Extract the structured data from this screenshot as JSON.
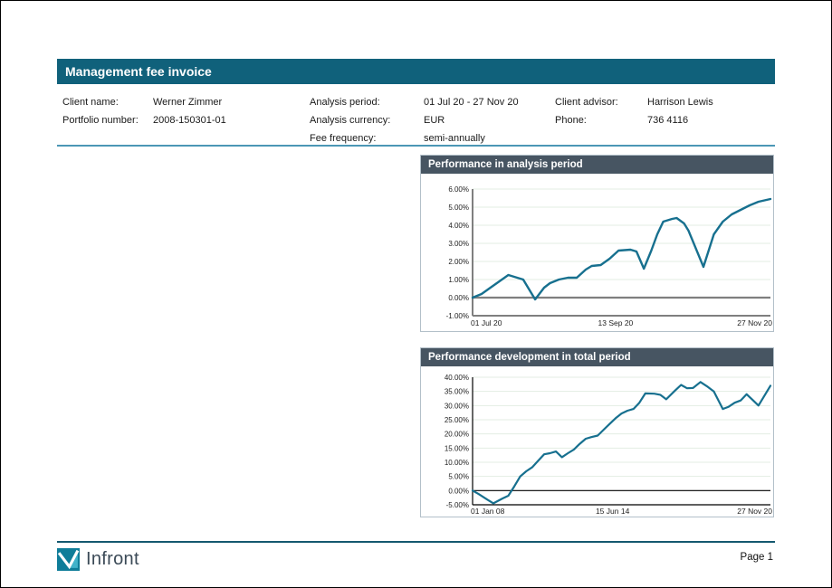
{
  "header": {
    "title": "Management fee invoice"
  },
  "client_info": {
    "col1": [
      {
        "label": "Client name:",
        "value": "Werner Zimmer"
      },
      {
        "label": "Portfolio number:",
        "value": "2008-150301-01"
      }
    ],
    "col2": [
      {
        "label": "Analysis period:",
        "value": "01 Jul 20 - 27 Nov 20"
      },
      {
        "label": "Analysis currency:",
        "value": "EUR"
      },
      {
        "label": "Fee frequency:",
        "value": "semi-annually"
      }
    ],
    "col3": [
      {
        "label": "Client advisor:",
        "value": "Harrison Lewis"
      },
      {
        "label": "Phone:",
        "value": "736 4116"
      }
    ]
  },
  "footer": {
    "brand": "Infront",
    "logo_icon": "infront-chart-logo",
    "page_label": "Page 1"
  },
  "colors": {
    "header_bar": "#10617b",
    "chart_title_bar": "#475562",
    "separator": "#4b97b5",
    "footer_line": "#14586f",
    "line": "#17708f",
    "gridline": "#e3ede3",
    "axis_gray": "#7f7f7f",
    "axis_black": "#000000",
    "logo_teal": "#0f7d99",
    "logo_teal_light": "#41b2ca"
  },
  "chart_data": [
    {
      "type": "line",
      "title": "Performance in analysis period",
      "ylabel_format": "percent",
      "ylim": [
        -1,
        6
      ],
      "ystep": 1,
      "grid": true,
      "legend": "none",
      "x_ticks": [
        {
          "label": "01 Jul 20",
          "pos": 0,
          "anchor": "start"
        },
        {
          "label": "13 Sep 20",
          "pos": 0.48,
          "anchor": "middle"
        },
        {
          "label": "27 Nov 20",
          "pos": 1,
          "anchor": "end"
        }
      ],
      "series": [
        {
          "name": "Performance in analysis period",
          "points": [
            [
              0,
              0
            ],
            [
              0.03,
              0.2
            ],
            [
              0.06,
              0.55
            ],
            [
              0.09,
              0.9
            ],
            [
              0.12,
              1.25
            ],
            [
              0.15,
              1.1
            ],
            [
              0.17,
              1.0
            ],
            [
              0.21,
              -0.1
            ],
            [
              0.24,
              0.55
            ],
            [
              0.26,
              0.8
            ],
            [
              0.29,
              1.0
            ],
            [
              0.32,
              1.1
            ],
            [
              0.35,
              1.1
            ],
            [
              0.38,
              1.55
            ],
            [
              0.4,
              1.75
            ],
            [
              0.43,
              1.8
            ],
            [
              0.46,
              2.15
            ],
            [
              0.49,
              2.6
            ],
            [
              0.53,
              2.65
            ],
            [
              0.55,
              2.55
            ],
            [
              0.575,
              1.6
            ],
            [
              0.6,
              2.6
            ],
            [
              0.62,
              3.5
            ],
            [
              0.64,
              4.2
            ],
            [
              0.67,
              4.35
            ],
            [
              0.685,
              4.4
            ],
            [
              0.71,
              4.1
            ],
            [
              0.725,
              3.7
            ],
            [
              0.775,
              1.7
            ],
            [
              0.81,
              3.5
            ],
            [
              0.84,
              4.2
            ],
            [
              0.87,
              4.6
            ],
            [
              0.9,
              4.85
            ],
            [
              0.93,
              5.1
            ],
            [
              0.96,
              5.3
            ],
            [
              1,
              5.45
            ]
          ]
        }
      ]
    },
    {
      "type": "line",
      "title": "Performance development in total period",
      "ylabel_format": "percent",
      "ylim": [
        -5,
        40
      ],
      "ystep": 5,
      "grid": true,
      "legend": "none",
      "x_ticks": [
        {
          "label": "01 Jan 08",
          "pos": 0,
          "anchor": "start"
        },
        {
          "label": "15 Jun 14",
          "pos": 0.47,
          "anchor": "middle"
        },
        {
          "label": "27 Nov 20",
          "pos": 1,
          "anchor": "end"
        }
      ],
      "series": [
        {
          "name": "Performance development in total period",
          "points": [
            [
              0,
              0
            ],
            [
              0.02,
              -1.2
            ],
            [
              0.05,
              -3.2
            ],
            [
              0.07,
              -4.5
            ],
            [
              0.1,
              -2.8
            ],
            [
              0.12,
              -1.8
            ],
            [
              0.14,
              1.5
            ],
            [
              0.16,
              5
            ],
            [
              0.18,
              6.8
            ],
            [
              0.2,
              8.2
            ],
            [
              0.22,
              10.5
            ],
            [
              0.24,
              12.8
            ],
            [
              0.26,
              13.2
            ],
            [
              0.28,
              13.8
            ],
            [
              0.3,
              11.8
            ],
            [
              0.32,
              13.2
            ],
            [
              0.34,
              14.5
            ],
            [
              0.36,
              16.5
            ],
            [
              0.38,
              18.3
            ],
            [
              0.4,
              18.9
            ],
            [
              0.42,
              19.4
            ],
            [
              0.44,
              21.5
            ],
            [
              0.46,
              23.5
            ],
            [
              0.48,
              25.5
            ],
            [
              0.5,
              27.2
            ],
            [
              0.52,
              28.2
            ],
            [
              0.54,
              28.8
            ],
            [
              0.56,
              31
            ],
            [
              0.58,
              34.3
            ],
            [
              0.61,
              34.2
            ],
            [
              0.63,
              33.8
            ],
            [
              0.65,
              32.2
            ],
            [
              0.68,
              35.3
            ],
            [
              0.7,
              37.3
            ],
            [
              0.72,
              36.1
            ],
            [
              0.74,
              36.2
            ],
            [
              0.765,
              38.3
            ],
            [
              0.79,
              36.6
            ],
            [
              0.81,
              35
            ],
            [
              0.84,
              28.8
            ],
            [
              0.86,
              29.6
            ],
            [
              0.88,
              31
            ],
            [
              0.9,
              31.8
            ],
            [
              0.92,
              34
            ],
            [
              0.94,
              32
            ],
            [
              0.96,
              30
            ],
            [
              1,
              37
            ]
          ]
        }
      ]
    }
  ]
}
